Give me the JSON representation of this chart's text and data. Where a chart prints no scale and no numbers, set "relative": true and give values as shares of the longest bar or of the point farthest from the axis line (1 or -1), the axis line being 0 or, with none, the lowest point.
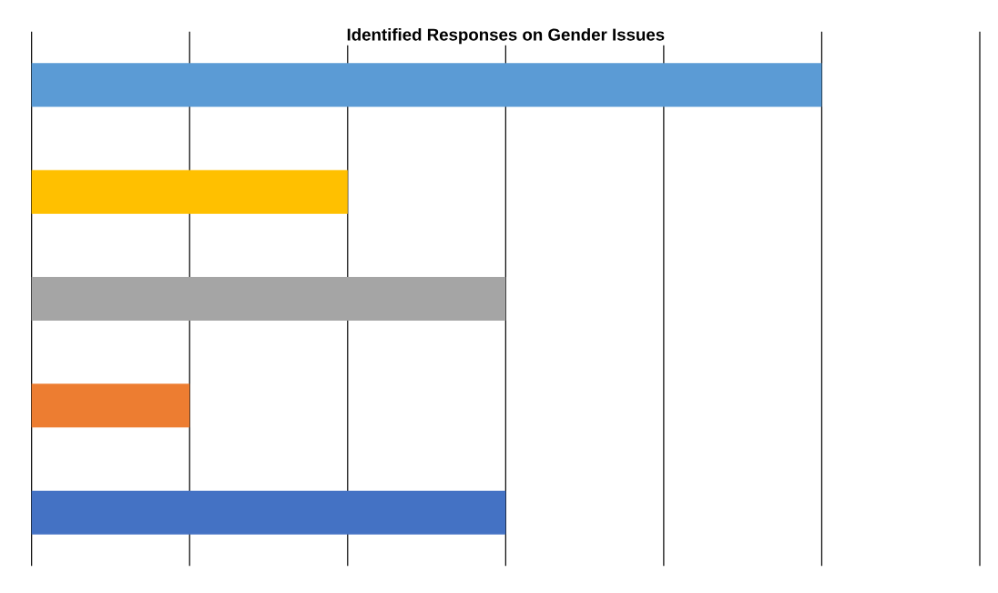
{
  "chart_data": {
    "type": "bar",
    "orientation": "horizontal",
    "relative": true,
    "title": "Identified Responses on Gender Issues",
    "categories": [
      null,
      null,
      null,
      null,
      null
    ],
    "values": [
      1,
      0.4,
      0.6,
      0.2,
      0.6
    ],
    "colors": [
      "#5b9bd5",
      "#ffc000",
      "#a5a5a5",
      "#ed7d31",
      "#4472c4"
    ],
    "grid": "x",
    "tick_labels": false
  }
}
